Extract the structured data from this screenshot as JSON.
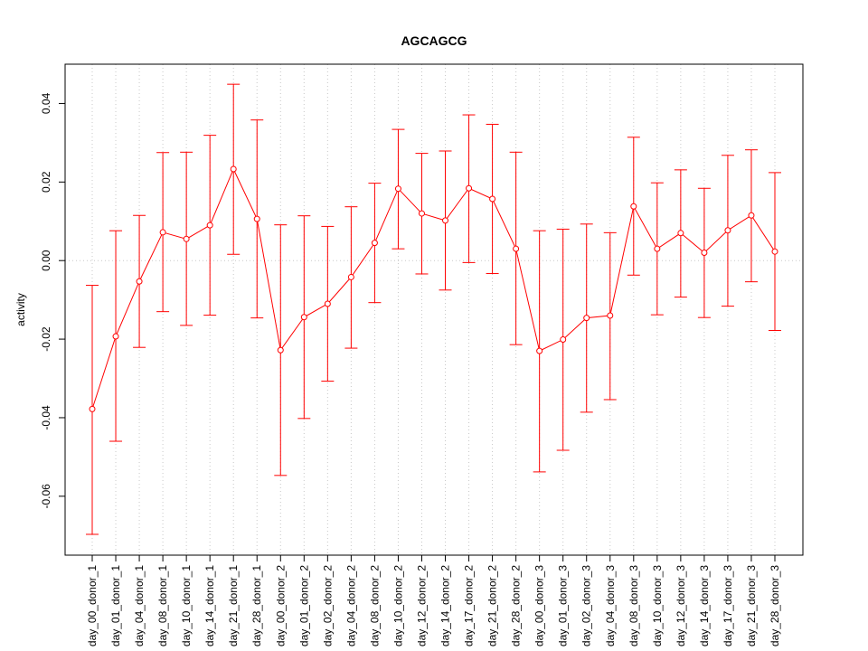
{
  "chart_data": {
    "type": "line",
    "title": "AGCAGCG",
    "xlabel": "",
    "ylabel": "activity",
    "ylim": [
      -0.075,
      0.05
    ],
    "yticks": [
      -0.06,
      -0.04,
      -0.02,
      0.0,
      0.02,
      0.04
    ],
    "ytick_labels": [
      "-0.06",
      "-0.04",
      "-0.02",
      "0.00",
      "0.02",
      "0.04"
    ],
    "grid": true,
    "error_bars": true,
    "categories": [
      "day_00_donor_1",
      "day_01_donor_1",
      "day_04_donor_1",
      "day_08_donor_1",
      "day_10_donor_1",
      "day_14_donor_1",
      "day_21_donor_1",
      "day_28_donor_1",
      "day_00_donor_2",
      "day_01_donor_2",
      "day_02_donor_2",
      "day_04_donor_2",
      "day_08_donor_2",
      "day_10_donor_2",
      "day_12_donor_2",
      "day_14_donor_2",
      "day_17_donor_2",
      "day_21_donor_2",
      "day_28_donor_2",
      "day_00_donor_3",
      "day_01_donor_3",
      "day_02_donor_3",
      "day_04_donor_3",
      "day_08_donor_3",
      "day_10_donor_3",
      "day_12_donor_3",
      "day_14_donor_3",
      "day_17_donor_3",
      "day_21_donor_3",
      "day_28_donor_3"
    ],
    "series": [
      {
        "color": "#ff0000",
        "values": [
          -0.0378,
          -0.0193,
          -0.0053,
          0.0072,
          0.0055,
          0.009,
          0.0233,
          0.0106,
          -0.0228,
          -0.0144,
          -0.011,
          -0.0042,
          0.0045,
          0.0183,
          0.012,
          0.0102,
          0.0184,
          0.0157,
          0.003,
          -0.023,
          -0.0201,
          -0.0146,
          -0.014,
          0.0138,
          0.003,
          0.007,
          0.002,
          0.0077,
          0.0115,
          0.0023
        ],
        "upper": [
          -0.0063,
          0.0076,
          0.0115,
          0.0275,
          0.0276,
          0.0319,
          0.0449,
          0.0358,
          0.0091,
          0.0114,
          0.0087,
          0.0137,
          0.0197,
          0.0334,
          0.0273,
          0.0279,
          0.0371,
          0.0347,
          0.0276,
          0.0076,
          0.008,
          0.0093,
          0.0071,
          0.0314,
          0.0198,
          0.0231,
          0.0184,
          0.0268,
          0.0282,
          0.0224
        ],
        "lower": [
          -0.0697,
          -0.046,
          -0.0221,
          -0.013,
          -0.0165,
          -0.0139,
          0.0016,
          -0.0146,
          -0.0547,
          -0.0402,
          -0.0307,
          -0.0223,
          -0.0107,
          0.003,
          -0.0034,
          -0.0075,
          -0.0005,
          -0.0033,
          -0.0214,
          -0.0538,
          -0.0483,
          -0.0386,
          -0.0354,
          -0.0037,
          -0.0138,
          -0.0093,
          -0.0145,
          -0.0116,
          -0.0054,
          -0.0178
        ]
      }
    ]
  }
}
